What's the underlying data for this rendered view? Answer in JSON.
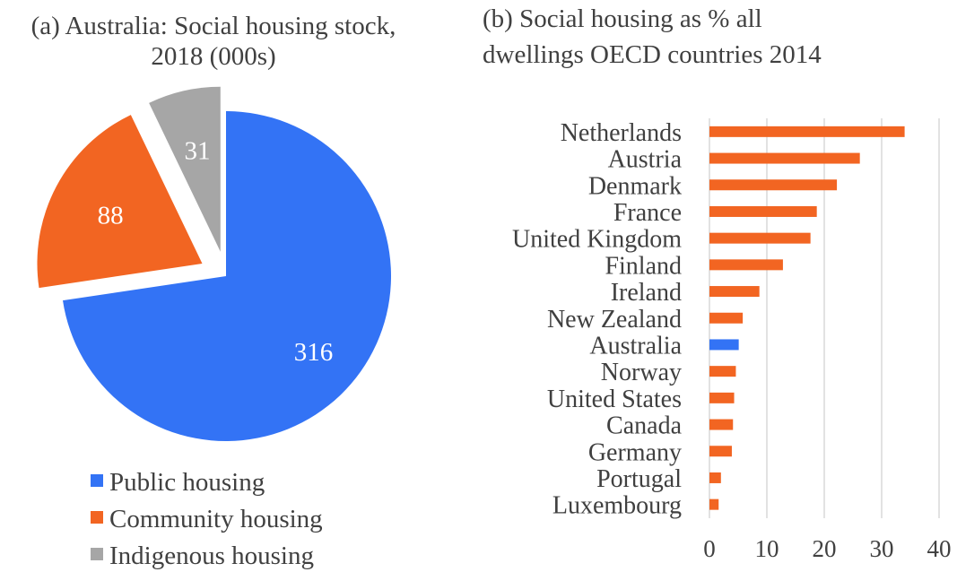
{
  "chart_data": [
    {
      "type": "pie",
      "title_lines": [
        "(a) Australia: Social housing stock,",
        "2018 (000s)"
      ],
      "slices": [
        {
          "label": "Public housing",
          "value": 316,
          "display": "316",
          "color": "#3373F5"
        },
        {
          "label": "Community housing",
          "value": 88,
          "display": "88",
          "color": "#F26522"
        },
        {
          "label": "Indigenous housing",
          "value": 31,
          "display": "31",
          "color": "#A6A6A6"
        }
      ],
      "legend_position": "bottom"
    },
    {
      "type": "bar",
      "orientation": "horizontal",
      "title_lines": [
        "(b) Social housing as % all",
        "dwellings OECD countries 2014"
      ],
      "categories": [
        "Netherlands",
        "Austria",
        "Denmark",
        "France",
        "United Kingdom",
        "Finland",
        "Ireland",
        "New Zealand",
        "Australia",
        "Norway",
        "United States",
        "Canada",
        "Germany",
        "Portugal",
        "Luxembourg"
      ],
      "values": [
        34,
        26.2,
        22.2,
        18.7,
        17.6,
        12.8,
        8.7,
        5.8,
        5.1,
        4.6,
        4.3,
        4.1,
        3.9,
        2,
        1.6
      ],
      "bar_color": "#F26522",
      "highlight": {
        "category": "Australia",
        "color": "#3373F5"
      },
      "xlim": [
        0,
        40
      ],
      "xticks": [
        0,
        10,
        20,
        30,
        40
      ],
      "grid": true,
      "legend": false
    }
  ]
}
